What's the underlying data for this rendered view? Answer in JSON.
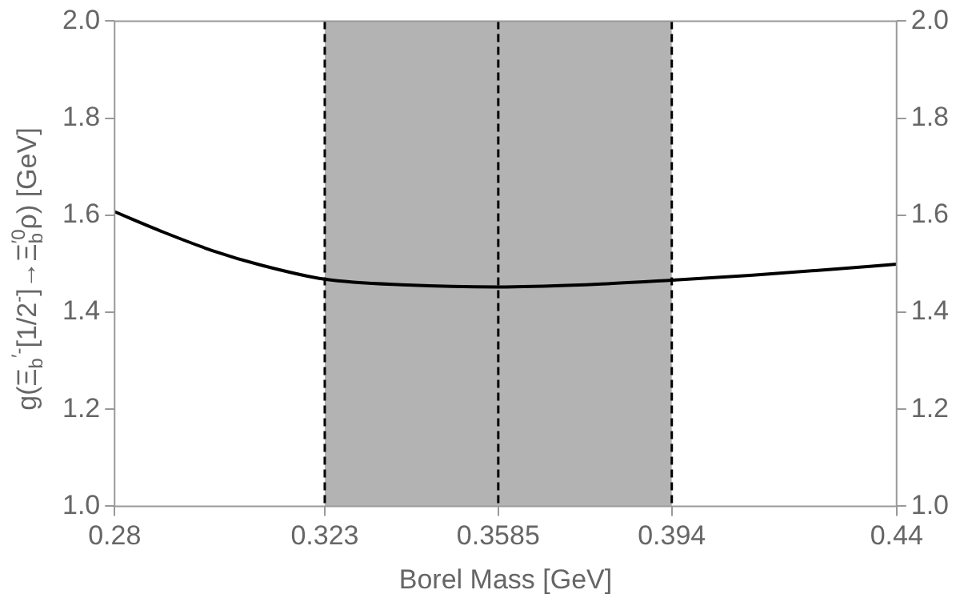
{
  "chart_data": {
    "type": "line",
    "xlabel": "Borel Mass [GeV]",
    "ylabel": "g(Ξ$_{b}$$^{′-}$[1/2$^{-}$]→Ξ$_{b}$$^{′0}$ρ) [GeV]",
    "x": [
      0.28,
      0.29,
      0.3,
      0.31,
      0.323,
      0.34,
      0.3585,
      0.375,
      0.394,
      0.41,
      0.425,
      0.44
    ],
    "series": [
      {
        "color": "#000000",
        "values": [
          1.607,
          1.565,
          1.527,
          1.497,
          1.468,
          1.456,
          1.452,
          1.456,
          1.466,
          1.476,
          1.487,
          1.499
        ]
      }
    ],
    "xlim": [
      0.28,
      0.44
    ],
    "xticks": [
      0.28,
      0.323,
      0.3585,
      0.394,
      0.44
    ],
    "ylim": [
      1.0,
      2.0
    ],
    "yticks": [
      {
        "value": 1.0,
        "label": "1.0"
      },
      {
        "value": 1.2,
        "label": "1.2"
      },
      {
        "value": 1.4,
        "label": "1.4"
      },
      {
        "value": 1.6,
        "label": "1.6"
      },
      {
        "value": 1.8,
        "label": "1.8"
      },
      {
        "value": 2.0,
        "label": "2.0"
      }
    ],
    "y2lim": [
      1.0,
      2.0
    ],
    "y2ticks": [
      {
        "value": 1.0,
        "label": "1.0"
      },
      {
        "value": 1.2,
        "label": "1.2"
      },
      {
        "value": 1.4,
        "label": "1.4"
      },
      {
        "value": 1.6,
        "label": "1.6"
      },
      {
        "value": 1.8,
        "label": "1.8"
      },
      {
        "value": 2.0,
        "label": "2.0"
      }
    ],
    "bands": [
      {
        "axis": "x",
        "from": 0.323,
        "to": 0.394,
        "color": "#b3b3b3"
      }
    ],
    "ref_lines": [
      {
        "axis": "x",
        "value": 0.323,
        "line_style": "dashed",
        "color": "#000000"
      },
      {
        "axis": "x",
        "value": 0.3585,
        "line_style": "dashed",
        "color": "#000000"
      },
      {
        "axis": "x",
        "value": 0.394,
        "line_style": "dashed",
        "color": "#000000"
      }
    ],
    "grid": false,
    "legend": false,
    "marker": "none",
    "line_style": "solid"
  }
}
